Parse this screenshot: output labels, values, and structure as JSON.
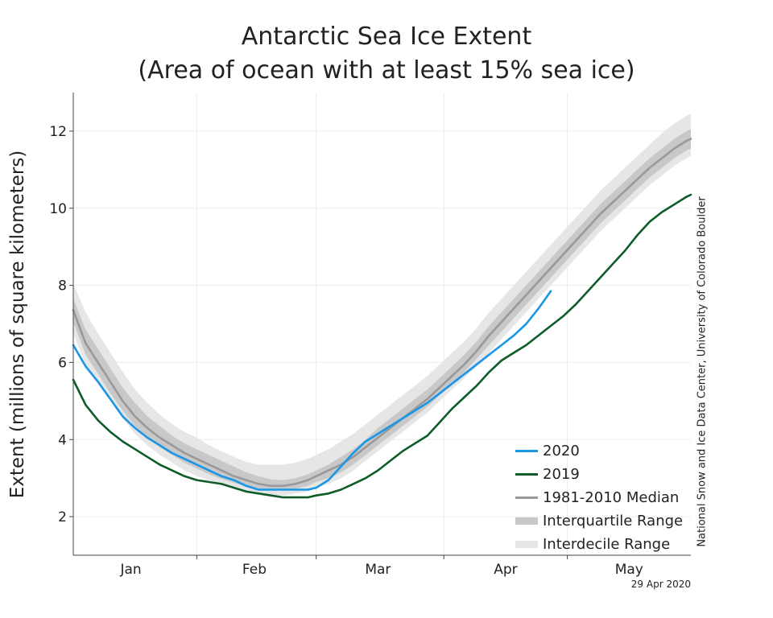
{
  "chart_data": {
    "type": "line",
    "title": "Antarctic Sea Ice Extent",
    "subtitle": "(Area of ocean with at least 15% sea ice)",
    "ylabel": "Extent (millions of square kilometers)",
    "xlabel": "",
    "credit": "National Snow and Ice Data Center, University of Colorado Boulder",
    "date_stamp": "29 Apr 2020",
    "ylim": [
      1,
      13
    ],
    "xlim": [
      1,
      151
    ],
    "yticks": [
      2,
      4,
      6,
      8,
      10,
      12
    ],
    "month_labels": [
      {
        "label": "Jan",
        "day": 15
      },
      {
        "label": "Feb",
        "day": 45
      },
      {
        "label": "Mar",
        "day": 75
      },
      {
        "label": "Apr",
        "day": 106
      },
      {
        "label": "May",
        "day": 136
      }
    ],
    "month_boundaries": [
      31,
      60,
      91,
      121
    ],
    "grid": true,
    "legend": {
      "placement": "bottom-right",
      "entries": [
        "2020",
        "2019",
        "1981-2010 Median",
        "Interquartile Range",
        "Interdecile Range"
      ]
    },
    "x": [
      1,
      4,
      7,
      10,
      13,
      16,
      19,
      22,
      25,
      28,
      31,
      34,
      37,
      40,
      43,
      46,
      49,
      52,
      55,
      58,
      60,
      63,
      66,
      69,
      72,
      75,
      78,
      81,
      84,
      87,
      90,
      93,
      96,
      99,
      102,
      105,
      108,
      111,
      114,
      117,
      120,
      123,
      126,
      129,
      132,
      135,
      138,
      141,
      144,
      147,
      150,
      151
    ],
    "series": [
      {
        "name": "2020",
        "color": "#1a96e6",
        "values": [
          6.45,
          5.9,
          5.5,
          5.05,
          4.6,
          4.3,
          4.05,
          3.85,
          3.65,
          3.5,
          3.35,
          3.2,
          3.05,
          2.95,
          2.8,
          2.7,
          2.7,
          2.7,
          2.7,
          2.7,
          2.75,
          2.95,
          3.3,
          3.65,
          3.95,
          4.15,
          4.35,
          4.55,
          4.75,
          4.95,
          5.2,
          5.45,
          5.7,
          5.95,
          6.2,
          6.45,
          6.7,
          7.0,
          7.4,
          7.85,
          null,
          null,
          null,
          null,
          null,
          null,
          null,
          null,
          null,
          null,
          null,
          null
        ]
      },
      {
        "name": "2019",
        "color": "#0d5c2a",
        "values": [
          5.55,
          4.9,
          4.5,
          4.2,
          3.95,
          3.75,
          3.55,
          3.35,
          3.2,
          3.05,
          2.95,
          2.9,
          2.85,
          2.75,
          2.65,
          2.6,
          2.55,
          2.5,
          2.5,
          2.5,
          2.55,
          2.6,
          2.7,
          2.85,
          3.0,
          3.2,
          3.45,
          3.7,
          3.9,
          4.1,
          4.45,
          4.8,
          5.1,
          5.4,
          5.75,
          6.05,
          6.25,
          6.45,
          6.7,
          6.95,
          7.2,
          7.5,
          7.85,
          8.2,
          8.55,
          8.9,
          9.3,
          9.65,
          9.9,
          10.1,
          10.3,
          10.35
        ]
      },
      {
        "name": "1981-2010 Median",
        "color": "#999999",
        "values": [
          7.35,
          6.5,
          6.0,
          5.5,
          5.0,
          4.6,
          4.3,
          4.05,
          3.85,
          3.65,
          3.5,
          3.35,
          3.2,
          3.05,
          2.95,
          2.85,
          2.8,
          2.8,
          2.85,
          2.95,
          3.05,
          3.2,
          3.35,
          3.55,
          3.8,
          4.05,
          4.3,
          4.55,
          4.8,
          5.05,
          5.35,
          5.65,
          5.95,
          6.3,
          6.7,
          7.05,
          7.4,
          7.75,
          8.1,
          8.45,
          8.8,
          9.15,
          9.5,
          9.85,
          10.15,
          10.45,
          10.75,
          11.05,
          11.3,
          11.55,
          11.75,
          11.8
        ]
      }
    ],
    "interquartile": {
      "color": "#c8c8c8",
      "lower": [
        7.05,
        6.2,
        5.7,
        5.2,
        4.75,
        4.35,
        4.05,
        3.8,
        3.6,
        3.4,
        3.25,
        3.1,
        2.98,
        2.88,
        2.78,
        2.72,
        2.68,
        2.68,
        2.72,
        2.8,
        2.9,
        3.0,
        3.15,
        3.35,
        3.6,
        3.85,
        4.1,
        4.35,
        4.6,
        4.85,
        5.15,
        5.45,
        5.75,
        6.1,
        6.45,
        6.8,
        7.15,
        7.5,
        7.85,
        8.2,
        8.55,
        8.9,
        9.25,
        9.6,
        9.9,
        10.2,
        10.5,
        10.8,
        11.05,
        11.3,
        11.5,
        11.55
      ],
      "upper": [
        7.65,
        6.85,
        6.35,
        5.85,
        5.35,
        4.95,
        4.6,
        4.35,
        4.1,
        3.9,
        3.75,
        3.6,
        3.45,
        3.3,
        3.15,
        3.05,
        2.97,
        2.95,
        3.0,
        3.1,
        3.2,
        3.35,
        3.55,
        3.75,
        4.0,
        4.3,
        4.55,
        4.8,
        5.05,
        5.3,
        5.6,
        5.9,
        6.2,
        6.55,
        6.95,
        7.3,
        7.65,
        8.0,
        8.35,
        8.7,
        9.05,
        9.4,
        9.75,
        10.1,
        10.4,
        10.7,
        11.0,
        11.3,
        11.55,
        11.8,
        12.0,
        12.05
      ]
    },
    "interdecile": {
      "color": "#e6e6e6",
      "lower": [
        6.75,
        5.95,
        5.45,
        5.0,
        4.55,
        4.15,
        3.85,
        3.6,
        3.4,
        3.2,
        3.05,
        2.95,
        2.85,
        2.75,
        2.65,
        2.6,
        2.55,
        2.55,
        2.6,
        2.65,
        2.75,
        2.85,
        3.0,
        3.2,
        3.45,
        3.7,
        3.95,
        4.2,
        4.45,
        4.7,
        5.0,
        5.3,
        5.6,
        5.9,
        6.25,
        6.6,
        6.95,
        7.3,
        7.65,
        8.0,
        8.35,
        8.7,
        9.05,
        9.4,
        9.7,
        10.0,
        10.3,
        10.6,
        10.85,
        11.1,
        11.3,
        11.35
      ],
      "upper": [
        8.05,
        7.3,
        6.75,
        6.25,
        5.75,
        5.3,
        4.95,
        4.65,
        4.4,
        4.2,
        4.05,
        3.85,
        3.7,
        3.55,
        3.42,
        3.35,
        3.35,
        3.35,
        3.4,
        3.5,
        3.6,
        3.75,
        3.95,
        4.15,
        4.4,
        4.65,
        4.9,
        5.15,
        5.4,
        5.65,
        5.95,
        6.25,
        6.55,
        6.9,
        7.3,
        7.65,
        8.0,
        8.35,
        8.7,
        9.05,
        9.4,
        9.75,
        10.1,
        10.45,
        10.75,
        11.05,
        11.35,
        11.65,
        11.95,
        12.2,
        12.4,
        12.45
      ]
    }
  }
}
